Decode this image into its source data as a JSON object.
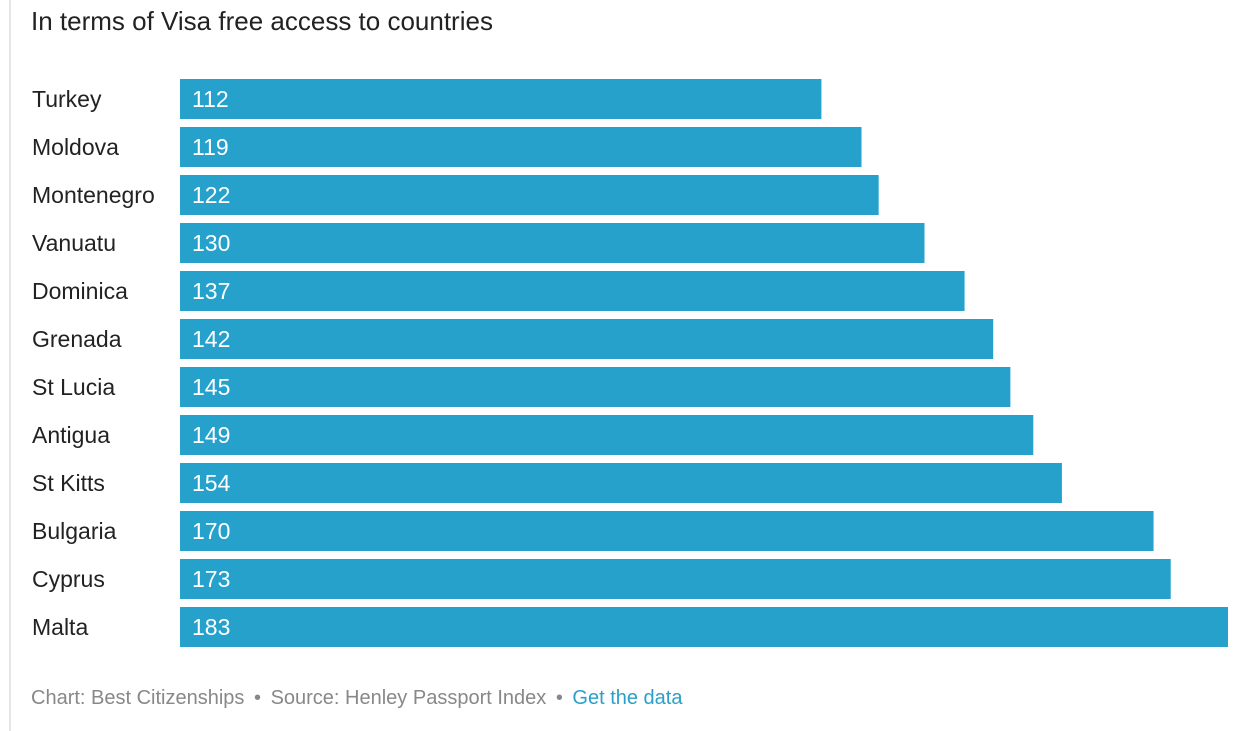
{
  "chart_data": {
    "type": "bar",
    "orientation": "horizontal",
    "title": "In terms of Visa free access to countries",
    "categories": [
      "Turkey",
      "Moldova",
      "Montenegro",
      "Vanuatu",
      "Dominica",
      "Grenada",
      "St Lucia",
      "Antigua",
      "St Kitts",
      "Bulgaria",
      "Cyprus",
      "Malta"
    ],
    "values": [
      112,
      119,
      122,
      130,
      137,
      142,
      145,
      149,
      154,
      170,
      173,
      183
    ],
    "xlim": [
      0,
      183
    ],
    "bar_color": "#26a1cb",
    "grid": false,
    "xlabel": "",
    "ylabel": ""
  },
  "footer": {
    "chart_credit": "Chart: Best Citizenships",
    "source": "Source: Henley Passport Index",
    "separator": "•",
    "data_link": "Get the data",
    "link_color": "#2a9fc9"
  }
}
